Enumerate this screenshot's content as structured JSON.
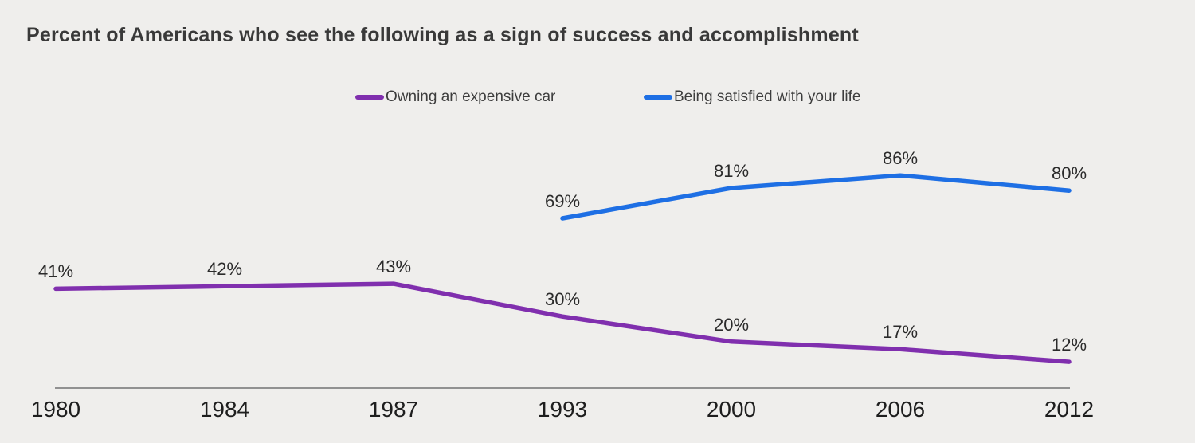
{
  "chart_data": {
    "type": "line",
    "title": "Percent of Americans who see the following as a sign of success and accomplishment",
    "categories": [
      "1980",
      "1984",
      "1987",
      "1993",
      "2000",
      "2006",
      "2012"
    ],
    "series": [
      {
        "name": "Owning an expensive car",
        "color": "#802fae",
        "values": [
          41,
          42,
          43,
          30,
          20,
          17,
          12
        ]
      },
      {
        "name": "Being satisfied with your life",
        "color": "#1e6fe4",
        "values": [
          null,
          null,
          null,
          69,
          81,
          86,
          80
        ]
      }
    ],
    "value_suffix": "%",
    "xlabel": "",
    "ylabel": "",
    "ylim": [
      0,
      100
    ],
    "grid": false,
    "y_axis_visible": false,
    "legend_position": "top-center",
    "data_labels": true
  },
  "colors": {
    "background": "#efeeec",
    "title_text": "#393939",
    "legend_text": "#3d3d3d",
    "axis_line": "#919191",
    "tick_label_text": "#1e1e1e",
    "data_label_text": "#2b2b2b"
  }
}
